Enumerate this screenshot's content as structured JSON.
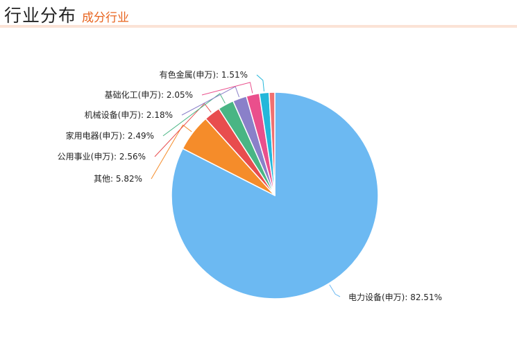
{
  "header": {
    "title": "行业分布",
    "subtitle": "成分行业"
  },
  "chart_data": {
    "type": "pie",
    "title": "",
    "slices": [
      {
        "name": "电力设备(申万)",
        "value": 82.51,
        "color": "#6cb9f2",
        "label": "电力设备(申万): 82.51%"
      },
      {
        "name": "其他",
        "value": 5.82,
        "color": "#f58c2a",
        "label": "其他: 5.82%"
      },
      {
        "name": "公用事业(申万)",
        "value": 2.56,
        "color": "#e84d4e",
        "label": "公用事业(申万): 2.56%"
      },
      {
        "name": "家用电器(申万)",
        "value": 2.49,
        "color": "#49b584",
        "label": "家用电器(申万): 2.49%"
      },
      {
        "name": "机械设备(申万)",
        "value": 2.18,
        "color": "#8a80c9",
        "label": "机械设备(申万): 2.18%"
      },
      {
        "name": "基础化工(申万)",
        "value": 2.05,
        "color": "#ea4f8c",
        "label": "基础化工(申万): 2.05%"
      },
      {
        "name": "有色金属(申万)",
        "value": 1.51,
        "color": "#23b7da",
        "label": "有色金属(申万): 1.51%"
      },
      {
        "name": "",
        "value": 0.88,
        "color": "#f07070",
        "label": ""
      }
    ]
  }
}
